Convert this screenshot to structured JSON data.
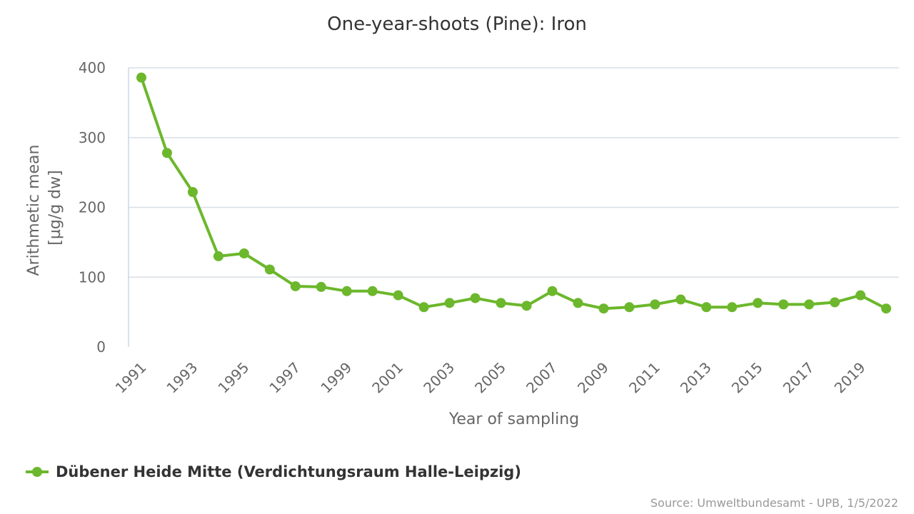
{
  "chart_data": {
    "type": "line",
    "title": "One-year-shoots (Pine): Iron",
    "xlabel": "Year of sampling",
    "ylabel_lines": [
      "Arithmetic mean",
      "[µg/g dw]"
    ],
    "ylim": [
      0,
      400
    ],
    "yticks": [
      0,
      100,
      200,
      300,
      400
    ],
    "xticks": [
      "1991",
      "1993",
      "1995",
      "1997",
      "1999",
      "2001",
      "2003",
      "2005",
      "2007",
      "2009",
      "2011",
      "2013",
      "2015",
      "2017",
      "2019"
    ],
    "x": [
      1991,
      1992,
      1993,
      1994,
      1995,
      1996,
      1997,
      1998,
      1999,
      2000,
      2001,
      2002,
      2003,
      2004,
      2005,
      2006,
      2007,
      2008,
      2009,
      2010,
      2011,
      2012,
      2013,
      2014,
      2015,
      2016,
      2017,
      2018,
      2019,
      2020
    ],
    "series": [
      {
        "name": "Dübener Heide Mitte (Verdichtungsraum Halle-Leipzig)",
        "color": "#6cb72c",
        "values": [
          386,
          278,
          222,
          130,
          134,
          111,
          87,
          86,
          80,
          80,
          74,
          57,
          63,
          70,
          63,
          59,
          80,
          63,
          55,
          57,
          61,
          68,
          57,
          57,
          63,
          61,
          61,
          64,
          74,
          55
        ]
      }
    ],
    "grid": true,
    "legend": "bottom-left"
  },
  "credits": "Source: Umweltbundesamt - UPB, 1/5/2022"
}
